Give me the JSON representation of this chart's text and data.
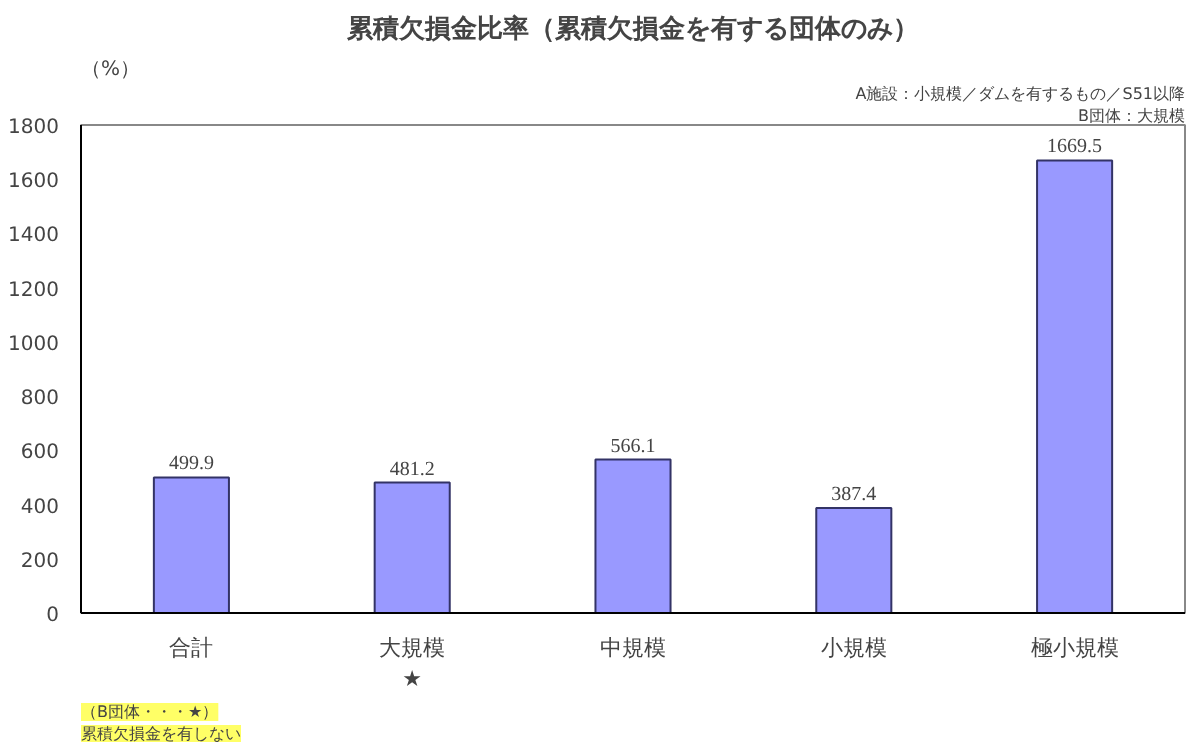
{
  "chart_data": {
    "type": "bar",
    "title": "累積欠損金比率（累積欠損金を有する団体のみ）",
    "ylabel": "（%）",
    "categories": [
      "合計",
      "大規模",
      "中規模",
      "小規模",
      "極小規模"
    ],
    "values": [
      499.9,
      481.2,
      566.1,
      387.4,
      1669.5
    ],
    "color": "#9999ff",
    "ylim": [
      0,
      1800
    ],
    "yticks": [
      0,
      200,
      400,
      600,
      800,
      1000,
      1200,
      1400,
      1600,
      1800
    ],
    "grid": false,
    "data_labels": true,
    "annotations": [
      "A施設：小規模／ダムを有するもの／S51以降",
      "B団体：大規模",
      "★",
      "（B団体・・・★）",
      "累積欠損金を有しない"
    ]
  }
}
